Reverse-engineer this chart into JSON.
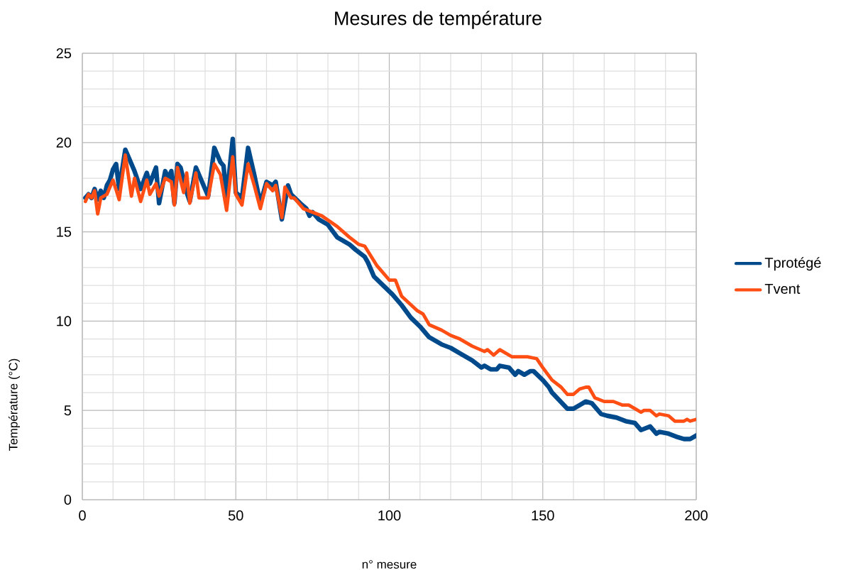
{
  "chart_data": {
    "type": "line",
    "title": "Mesures de température",
    "xlabel": "n° mesure",
    "ylabel": "Température (°C)",
    "xlim": [
      0,
      200
    ],
    "ylim": [
      0,
      25
    ],
    "xticks": [
      0,
      50,
      100,
      150,
      200
    ],
    "yticks": [
      0,
      5,
      10,
      15,
      20,
      25
    ],
    "grid": true,
    "legend": "right",
    "series": [
      {
        "name": "Tprotégé",
        "color": "#004a8c",
        "x": [
          1,
          2,
          3,
          4,
          5,
          6,
          7,
          8,
          9,
          10,
          11,
          12,
          14,
          17,
          19,
          21,
          22,
          24,
          25,
          27,
          28,
          29,
          30,
          31,
          32,
          34,
          35,
          37,
          39,
          41,
          43,
          45,
          46,
          47,
          49,
          50,
          52,
          54,
          56,
          58,
          60,
          62,
          63,
          65,
          67,
          68,
          71,
          73,
          74,
          75,
          77,
          80,
          83,
          87,
          89,
          92,
          93,
          95,
          98,
          101,
          104,
          107,
          110,
          113,
          117,
          120,
          123,
          127,
          130,
          131,
          133,
          135,
          136,
          139,
          141,
          142,
          144,
          146,
          147,
          150,
          152,
          153,
          158,
          160,
          162,
          164,
          166,
          169,
          171,
          174,
          177,
          180,
          182,
          185,
          187,
          188,
          191,
          194,
          196,
          198,
          200
        ],
        "values": [
          16.9,
          17.1,
          16.9,
          17.4,
          16.8,
          17.3,
          16.9,
          17.6,
          17.9,
          18.5,
          18.8,
          17.4,
          19.6,
          18.4,
          17.4,
          18.3,
          17.7,
          18.6,
          16.6,
          18.4,
          18.0,
          18.4,
          16.6,
          18.8,
          18.6,
          17.2,
          16.7,
          18.6,
          17.8,
          17.0,
          19.7,
          18.9,
          18.7,
          16.9,
          20.2,
          17.2,
          16.9,
          19.7,
          18.2,
          16.6,
          17.8,
          17.6,
          17.8,
          15.7,
          17.6,
          17.1,
          16.6,
          16.3,
          15.9,
          16.1,
          15.7,
          15.4,
          14.7,
          14.3,
          14.0,
          13.6,
          13.3,
          12.5,
          12.0,
          11.5,
          10.9,
          10.2,
          9.7,
          9.1,
          8.7,
          8.5,
          8.2,
          7.8,
          7.4,
          7.5,
          7.3,
          7.3,
          7.5,
          7.4,
          7.0,
          7.2,
          7.0,
          7.2,
          7.2,
          6.7,
          6.3,
          6.0,
          5.1,
          5.1,
          5.3,
          5.5,
          5.4,
          4.8,
          4.7,
          4.6,
          4.4,
          4.3,
          3.9,
          4.1,
          3.7,
          3.8,
          3.7,
          3.5,
          3.4,
          3.4,
          3.6
        ]
      },
      {
        "name": "Tvent",
        "color": "#ff4e14",
        "x": [
          1,
          2,
          3,
          4,
          5,
          6,
          8,
          10,
          12,
          14,
          16,
          17,
          19,
          21,
          22,
          24,
          25,
          27,
          29,
          30,
          31,
          33,
          34,
          35,
          37,
          38,
          41,
          43,
          45,
          47,
          49,
          50,
          52,
          54,
          56,
          58,
          60,
          62,
          63,
          65,
          66,
          68,
          69,
          72,
          75,
          78,
          83,
          87,
          90,
          92,
          96,
          100,
          102,
          104,
          109,
          111,
          113,
          117,
          120,
          123,
          127,
          131,
          132,
          134,
          136,
          140,
          143,
          145,
          148,
          150,
          153,
          156,
          158,
          160,
          162,
          164,
          165,
          167,
          170,
          173,
          176,
          178,
          180,
          182,
          183,
          185,
          187,
          188,
          191,
          193,
          196,
          197,
          198,
          200
        ],
        "values": [
          16.7,
          17.1,
          16.9,
          17.3,
          16.0,
          16.9,
          17.1,
          17.9,
          16.8,
          19.3,
          17.0,
          18.0,
          16.7,
          17.9,
          17.1,
          17.7,
          17.0,
          18.0,
          17.8,
          16.5,
          18.6,
          17.2,
          18.3,
          16.6,
          18.3,
          16.9,
          16.9,
          18.8,
          18.2,
          16.2,
          19.2,
          17.1,
          16.5,
          18.8,
          17.6,
          16.3,
          17.7,
          17.3,
          17.6,
          15.8,
          17.5,
          16.9,
          16.9,
          16.3,
          16.1,
          15.9,
          15.3,
          14.7,
          14.3,
          14.2,
          13.1,
          12.3,
          12.3,
          11.4,
          10.6,
          10.4,
          9.8,
          9.5,
          9.2,
          9.0,
          8.6,
          8.3,
          8.4,
          8.1,
          8.4,
          8.0,
          8.0,
          8.0,
          7.9,
          7.4,
          6.7,
          6.3,
          5.9,
          5.9,
          6.2,
          6.3,
          6.3,
          5.7,
          5.5,
          5.5,
          5.3,
          5.3,
          5.1,
          4.9,
          5.0,
          5.0,
          4.7,
          4.8,
          4.7,
          4.4,
          4.4,
          4.5,
          4.4,
          4.5
        ]
      }
    ]
  }
}
